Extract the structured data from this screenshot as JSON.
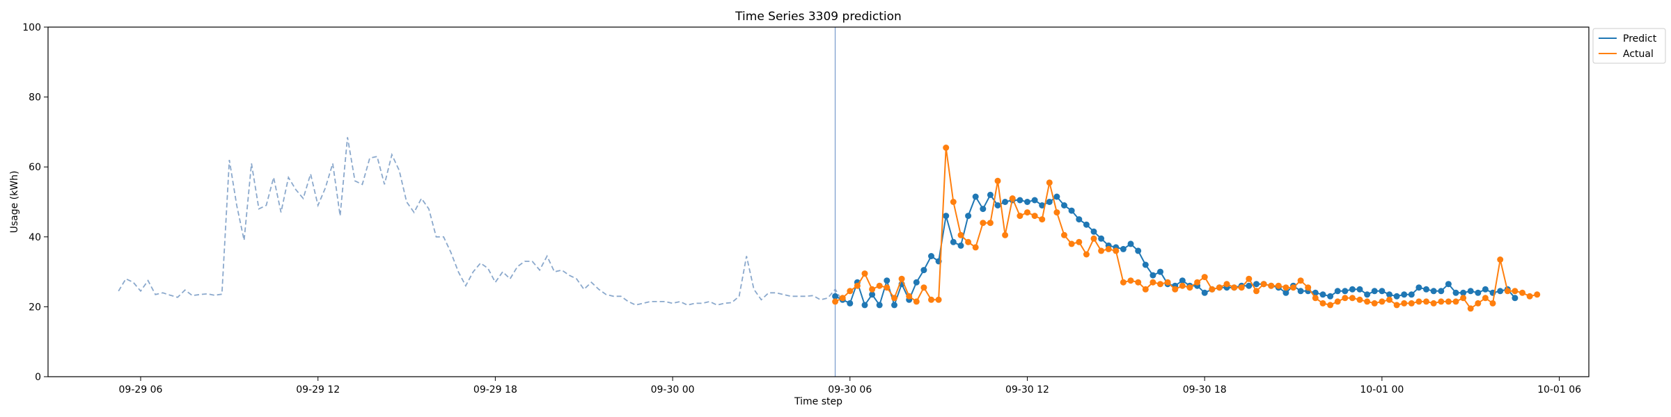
{
  "chart_data": {
    "type": "line",
    "title": "Time Series 3309 prediction",
    "xlabel": "Time step",
    "ylabel": "Usage (kWh)",
    "ylim": [
      0,
      100
    ],
    "xlim": [
      "09-29 02:52",
      "10-01 07:00"
    ],
    "y_ticks": [
      "0",
      "20",
      "40",
      "60",
      "80",
      "100"
    ],
    "x_ticks": [
      {
        "at": "09-29 06:00",
        "label": "09-29 06"
      },
      {
        "at": "09-29 12:00",
        "label": "09-29 12"
      },
      {
        "at": "09-29 18:00",
        "label": "09-29 18"
      },
      {
        "at": "09-30 00:00",
        "label": "09-30 00"
      },
      {
        "at": "09-30 06:00",
        "label": "09-30 06"
      },
      {
        "at": "09-30 12:00",
        "label": "09-30 12"
      },
      {
        "at": "09-30 18:00",
        "label": "09-30 18"
      },
      {
        "at": "10-01 00:00",
        "label": "10-01 00"
      },
      {
        "at": "10-01 06:00",
        "label": "10-01 06"
      }
    ],
    "step_minutes": 15,
    "forecast_start": "09-30 05:30",
    "history": {
      "start": "09-29 05:15",
      "values": [
        24.5,
        28,
        27,
        24.5,
        27.5,
        23.5,
        24,
        23.3,
        22.7,
        24.8,
        23.2,
        23.5,
        23.7,
        23.3,
        23.6,
        62,
        49,
        39,
        61,
        48,
        49,
        57,
        47,
        57,
        53.5,
        51,
        58,
        49,
        54,
        61,
        46,
        68.5,
        56,
        55,
        62.5,
        63,
        55,
        63.5,
        59,
        50,
        47,
        51,
        48,
        40,
        40,
        35.5,
        30,
        26,
        30,
        32.5,
        31,
        27,
        30,
        28,
        31.5,
        33,
        33,
        30.5,
        34.5,
        30,
        30.5,
        29,
        28,
        25,
        27,
        25,
        23.5,
        23,
        23,
        21.5,
        20.5,
        21,
        21.5,
        21.5,
        21.5,
        21,
        21.5,
        20.5,
        21,
        21,
        21.5,
        20.5,
        21,
        21.2,
        23,
        34.5,
        25,
        22,
        24,
        24,
        23.5,
        23,
        23,
        23,
        23.2,
        22,
        22.5,
        25,
        21.5
      ]
    },
    "series": [
      {
        "name": "Predict",
        "color": "#1f77b4",
        "start": "09-30 05:30",
        "values": [
          23,
          22,
          21,
          27,
          20.5,
          23.5,
          20.5,
          27.5,
          20.5,
          26.5,
          22,
          27,
          30.5,
          34.5,
          33,
          46,
          38.5,
          37.5,
          46,
          51.5,
          48,
          52,
          49,
          50,
          50.5,
          50.5,
          50,
          50.5,
          49,
          50,
          51.5,
          49,
          47.5,
          45,
          43.5,
          41.5,
          39.5,
          37.5,
          37,
          36.5,
          38,
          36,
          32,
          29,
          30,
          26.5,
          26,
          27.5,
          26,
          26,
          24,
          25,
          25.5,
          25.5,
          25.5,
          26,
          26,
          26.5,
          26.5,
          26,
          25.5,
          24,
          26,
          24.5,
          24.5,
          24,
          23.5,
          23,
          24.5,
          24.5,
          25,
          25,
          23.5,
          24.5,
          24.5,
          23.5,
          23,
          23.5,
          23.5,
          25.5,
          25,
          24.5,
          24.5,
          26.5,
          24,
          24,
          24.5,
          24,
          25,
          24,
          24.5,
          25,
          22.5
        ]
      },
      {
        "name": "Actual",
        "color": "#ff7f0e",
        "start": "09-30 05:30",
        "values": [
          21.5,
          22.5,
          24.5,
          26,
          29.5,
          25,
          26,
          25.5,
          22.5,
          28,
          23,
          21.5,
          25.5,
          22,
          22,
          65.5,
          50,
          40.5,
          38.5,
          37,
          44,
          44,
          56,
          40.5,
          51,
          46,
          47,
          46,
          45,
          55.5,
          47,
          40.5,
          38,
          38.5,
          35,
          39.5,
          36,
          36.5,
          36,
          27,
          27.5,
          27,
          25,
          27,
          26.5,
          27,
          25,
          26,
          25.5,
          27,
          28.5,
          25,
          25.5,
          26.5,
          25.5,
          25.5,
          28,
          24.5,
          26.5,
          26,
          26,
          25.5,
          25.5,
          27.5,
          25.5,
          22.5,
          21,
          20.5,
          21.5,
          22.5,
          22.5,
          22,
          21.5,
          21,
          21.5,
          22,
          20.5,
          21,
          21,
          21.5,
          21.5,
          21,
          21.5,
          21.5,
          21.5,
          22.5,
          19.5,
          21,
          22.5,
          21,
          33.5,
          24.5,
          24.5,
          24,
          23,
          23.5
        ]
      }
    ],
    "legend": {
      "placement": "top-right",
      "entries": [
        "Predict",
        "Actual"
      ]
    },
    "grid": false
  }
}
